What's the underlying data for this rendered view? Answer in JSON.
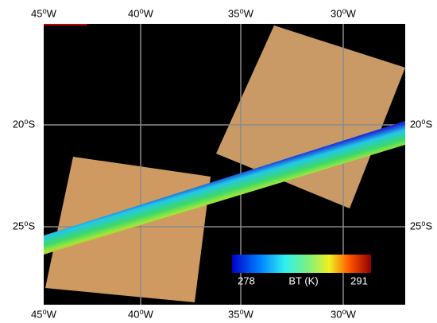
{
  "map": {
    "top_labels": [
      "45⁰W",
      "40⁰W",
      "35⁰W",
      "30⁰W"
    ],
    "bottom_labels": [
      "45⁰W",
      "40⁰W",
      "35⁰W",
      "30⁰W"
    ],
    "left_labels": [
      "20⁰S",
      "25⁰S"
    ],
    "right_labels": [
      "20⁰S",
      "25⁰S"
    ],
    "colorbar": {
      "min": 278,
      "max": 291,
      "label": "BT (K)"
    }
  }
}
